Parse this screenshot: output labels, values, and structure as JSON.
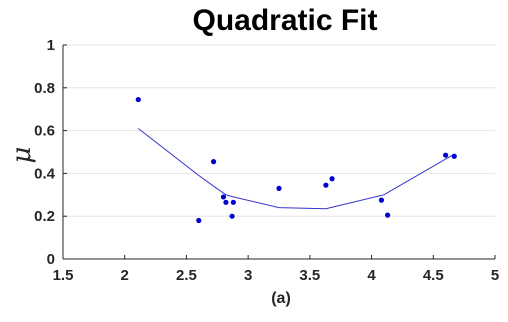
{
  "chart_data": {
    "type": "scatter",
    "title": "Quadratic Fit",
    "xlabel": "(a)",
    "ylabel": "μ",
    "xlim": [
      1.5,
      5
    ],
    "ylim": [
      0,
      1
    ],
    "xticks": [
      "1.5",
      "2",
      "2.5",
      "3",
      "3.5",
      "4",
      "4.5",
      "5"
    ],
    "yticks": [
      "0",
      "0.2",
      "0.4",
      "0.6",
      "0.8",
      "1"
    ],
    "grid": "horizontal",
    "colors": {
      "points": "#0000cc",
      "fit": "#3333cc",
      "grid": "#e6e6e6",
      "axis": "#262626"
    },
    "points": {
      "x": [
        2.11,
        2.6,
        2.72,
        2.8,
        2.82,
        2.87,
        2.88,
        3.25,
        3.63,
        3.68,
        4.08,
        4.13,
        4.6,
        4.67
      ],
      "y": [
        0.745,
        0.18,
        0.455,
        0.29,
        0.265,
        0.2,
        0.265,
        0.33,
        0.345,
        0.375,
        0.275,
        0.205,
        0.485,
        0.48
      ]
    },
    "fit": {
      "x": [
        2.11,
        2.6,
        2.72,
        2.82,
        2.88,
        3.25,
        3.63,
        4.1,
        4.67
      ],
      "y": [
        0.61,
        0.39,
        0.34,
        0.3,
        0.29,
        0.24,
        0.235,
        0.3,
        0.49
      ]
    }
  }
}
